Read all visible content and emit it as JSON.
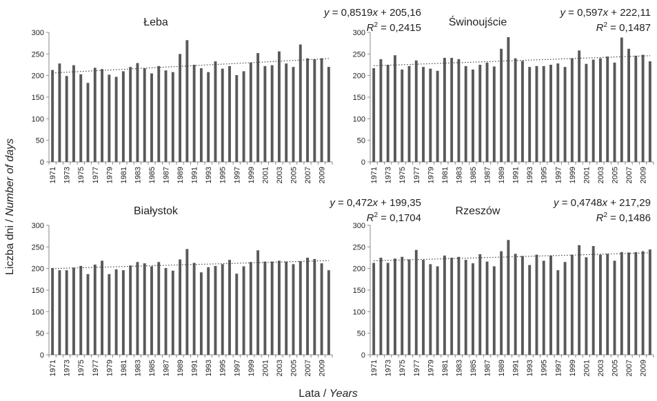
{
  "figure": {
    "ylabel": {
      "plain": "Liczba dni / ",
      "italic": "Number of days"
    },
    "xlabel": {
      "plain": "Lata / ",
      "italic": "Years"
    },
    "colors": {
      "bar": "#595959",
      "trend": "#404040",
      "axis": "#8a8a8a",
      "text": "#222222"
    }
  },
  "chart_data": [
    {
      "type": "bar",
      "title": "Łeba",
      "equation": {
        "y": "y",
        "eq": " = 0,8519",
        "x": "x",
        "rest": " +  205,16"
      },
      "r2": {
        "r": "R",
        "sup": "2",
        "rest": " = 0,2415"
      },
      "trend": {
        "slope": 0.8519,
        "intercept": 205.16
      },
      "ylim": [
        0,
        300
      ],
      "yticks": [
        "0",
        "50",
        "100",
        "150",
        "200",
        "250",
        "300"
      ],
      "xtick_labels": [
        "1971",
        "1973",
        "1975",
        "1977",
        "1979",
        "1981",
        "1983",
        "1985",
        "1987",
        "1989",
        "1991",
        "1993",
        "1995",
        "1997",
        "1999",
        "2001",
        "2003",
        "2005",
        "2007",
        "2009"
      ],
      "categories": [
        "1971",
        "1972",
        "1973",
        "1974",
        "1975",
        "1976",
        "1977",
        "1978",
        "1979",
        "1980",
        "1981",
        "1982",
        "1983",
        "1984",
        "1985",
        "1986",
        "1987",
        "1988",
        "1989",
        "1990",
        "1991",
        "1992",
        "1993",
        "1994",
        "1995",
        "1996",
        "1997",
        "1998",
        "1999",
        "2000",
        "2001",
        "2002",
        "2003",
        "2004",
        "2005",
        "2006",
        "2007",
        "2008",
        "2009",
        "2010"
      ],
      "values": [
        213,
        228,
        199,
        224,
        203,
        183,
        218,
        215,
        202,
        197,
        210,
        220,
        229,
        217,
        205,
        222,
        212,
        208,
        250,
        282,
        225,
        217,
        208,
        233,
        216,
        222,
        201,
        210,
        230,
        252,
        222,
        224,
        256,
        228,
        220,
        272,
        240,
        238,
        240,
        220
      ]
    },
    {
      "type": "bar",
      "title": "Świnoujście",
      "equation": {
        "y": "y",
        "eq": " = 0,597",
        "x": "x",
        "rest": " +  222,11"
      },
      "r2": {
        "r": "R",
        "sup": "2",
        "rest": " = 0,1487"
      },
      "trend": {
        "slope": 0.597,
        "intercept": 222.11
      },
      "ylim": [
        0,
        300
      ],
      "yticks": [
        "0",
        "50",
        "100",
        "150",
        "200",
        "250",
        "300"
      ],
      "xtick_labels": [
        "1971",
        "1973",
        "1975",
        "1977",
        "1979",
        "1981",
        "1983",
        "1985",
        "1987",
        "1989",
        "1991",
        "1993",
        "1995",
        "1997",
        "1999",
        "2001",
        "2003",
        "2005",
        "2007",
        "2009"
      ],
      "categories": [
        "1971",
        "1972",
        "1973",
        "1974",
        "1975",
        "1976",
        "1977",
        "1978",
        "1979",
        "1980",
        "1981",
        "1982",
        "1983",
        "1984",
        "1985",
        "1986",
        "1987",
        "1988",
        "1989",
        "1990",
        "1991",
        "1992",
        "1993",
        "1994",
        "1995",
        "1996",
        "1997",
        "1998",
        "1999",
        "2000",
        "2001",
        "2002",
        "2003",
        "2004",
        "2005",
        "2006",
        "2007",
        "2008",
        "2009",
        "2010"
      ],
      "values": [
        217,
        238,
        225,
        247,
        214,
        222,
        235,
        220,
        216,
        211,
        241,
        241,
        238,
        222,
        214,
        225,
        230,
        221,
        262,
        289,
        240,
        234,
        220,
        222,
        222,
        225,
        228,
        220,
        240,
        258,
        227,
        237,
        240,
        244,
        230,
        288,
        262,
        246,
        248,
        233
      ]
    },
    {
      "type": "bar",
      "title": "Białystok",
      "equation": {
        "y": "y",
        "eq": " = 0,472",
        "x": "x",
        "rest": " +  199,35"
      },
      "r2": {
        "r": "R",
        "sup": "2",
        "rest": " = 0,1704"
      },
      "trend": {
        "slope": 0.472,
        "intercept": 199.35
      },
      "ylim": [
        0,
        300
      ],
      "yticks": [
        "0",
        "50",
        "100",
        "150",
        "200",
        "250",
        "300"
      ],
      "xtick_labels": [
        "1971",
        "1973",
        "1975",
        "1977",
        "1979",
        "1981",
        "1983",
        "1985",
        "1987",
        "1989",
        "1991",
        "1993",
        "1995",
        "1997",
        "1999",
        "2001",
        "2003",
        "2005",
        "2007",
        "2009"
      ],
      "categories": [
        "1971",
        "1972",
        "1973",
        "1974",
        "1975",
        "1976",
        "1977",
        "1978",
        "1979",
        "1980",
        "1981",
        "1982",
        "1983",
        "1984",
        "1985",
        "1986",
        "1987",
        "1988",
        "1989",
        "1990",
        "1991",
        "1992",
        "1993",
        "1994",
        "1995",
        "1996",
        "1997",
        "1998",
        "1999",
        "2000",
        "2001",
        "2002",
        "2003",
        "2004",
        "2005",
        "2006",
        "2007",
        "2008",
        "2009",
        "2010"
      ],
      "values": [
        201,
        196,
        196,
        202,
        206,
        187,
        209,
        218,
        187,
        198,
        196,
        207,
        215,
        212,
        205,
        215,
        201,
        195,
        221,
        245,
        213,
        191,
        203,
        206,
        210,
        220,
        188,
        205,
        215,
        242,
        216,
        216,
        218,
        216,
        210,
        217,
        225,
        222,
        212,
        196
      ]
    },
    {
      "type": "bar",
      "title": "Rzeszów",
      "equation": {
        "y": "y",
        "eq": " = 0,4748",
        "x": "x",
        "rest": " +  217,29"
      },
      "r2": {
        "r": "R",
        "sup": "2",
        "rest": " = 0,1486"
      },
      "trend": {
        "slope": 0.4748,
        "intercept": 217.29
      },
      "ylim": [
        0,
        300
      ],
      "yticks": [
        "0",
        "50",
        "100",
        "150",
        "200",
        "250",
        "300"
      ],
      "xtick_labels": [
        "1971",
        "1973",
        "1975",
        "1977",
        "1979",
        "1981",
        "1983",
        "1985",
        "1987",
        "1989",
        "1991",
        "1993",
        "1995",
        "1997",
        "1999",
        "2001",
        "2003",
        "2005",
        "2007",
        "2009"
      ],
      "categories": [
        "1971",
        "1972",
        "1973",
        "1974",
        "1975",
        "1976",
        "1977",
        "1978",
        "1979",
        "1980",
        "1981",
        "1982",
        "1983",
        "1984",
        "1985",
        "1986",
        "1987",
        "1988",
        "1989",
        "1990",
        "1991",
        "1992",
        "1993",
        "1994",
        "1995",
        "1996",
        "1997",
        "1998",
        "1999",
        "2000",
        "2001",
        "2002",
        "2003",
        "2004",
        "2005",
        "2006",
        "2007",
        "2008",
        "2009",
        "2010"
      ],
      "values": [
        213,
        225,
        213,
        223,
        227,
        221,
        243,
        220,
        210,
        205,
        230,
        225,
        227,
        220,
        212,
        233,
        216,
        205,
        240,
        266,
        234,
        229,
        208,
        232,
        218,
        230,
        196,
        215,
        232,
        254,
        226,
        252,
        232,
        234,
        218,
        238,
        237,
        238,
        240,
        244
      ]
    }
  ]
}
